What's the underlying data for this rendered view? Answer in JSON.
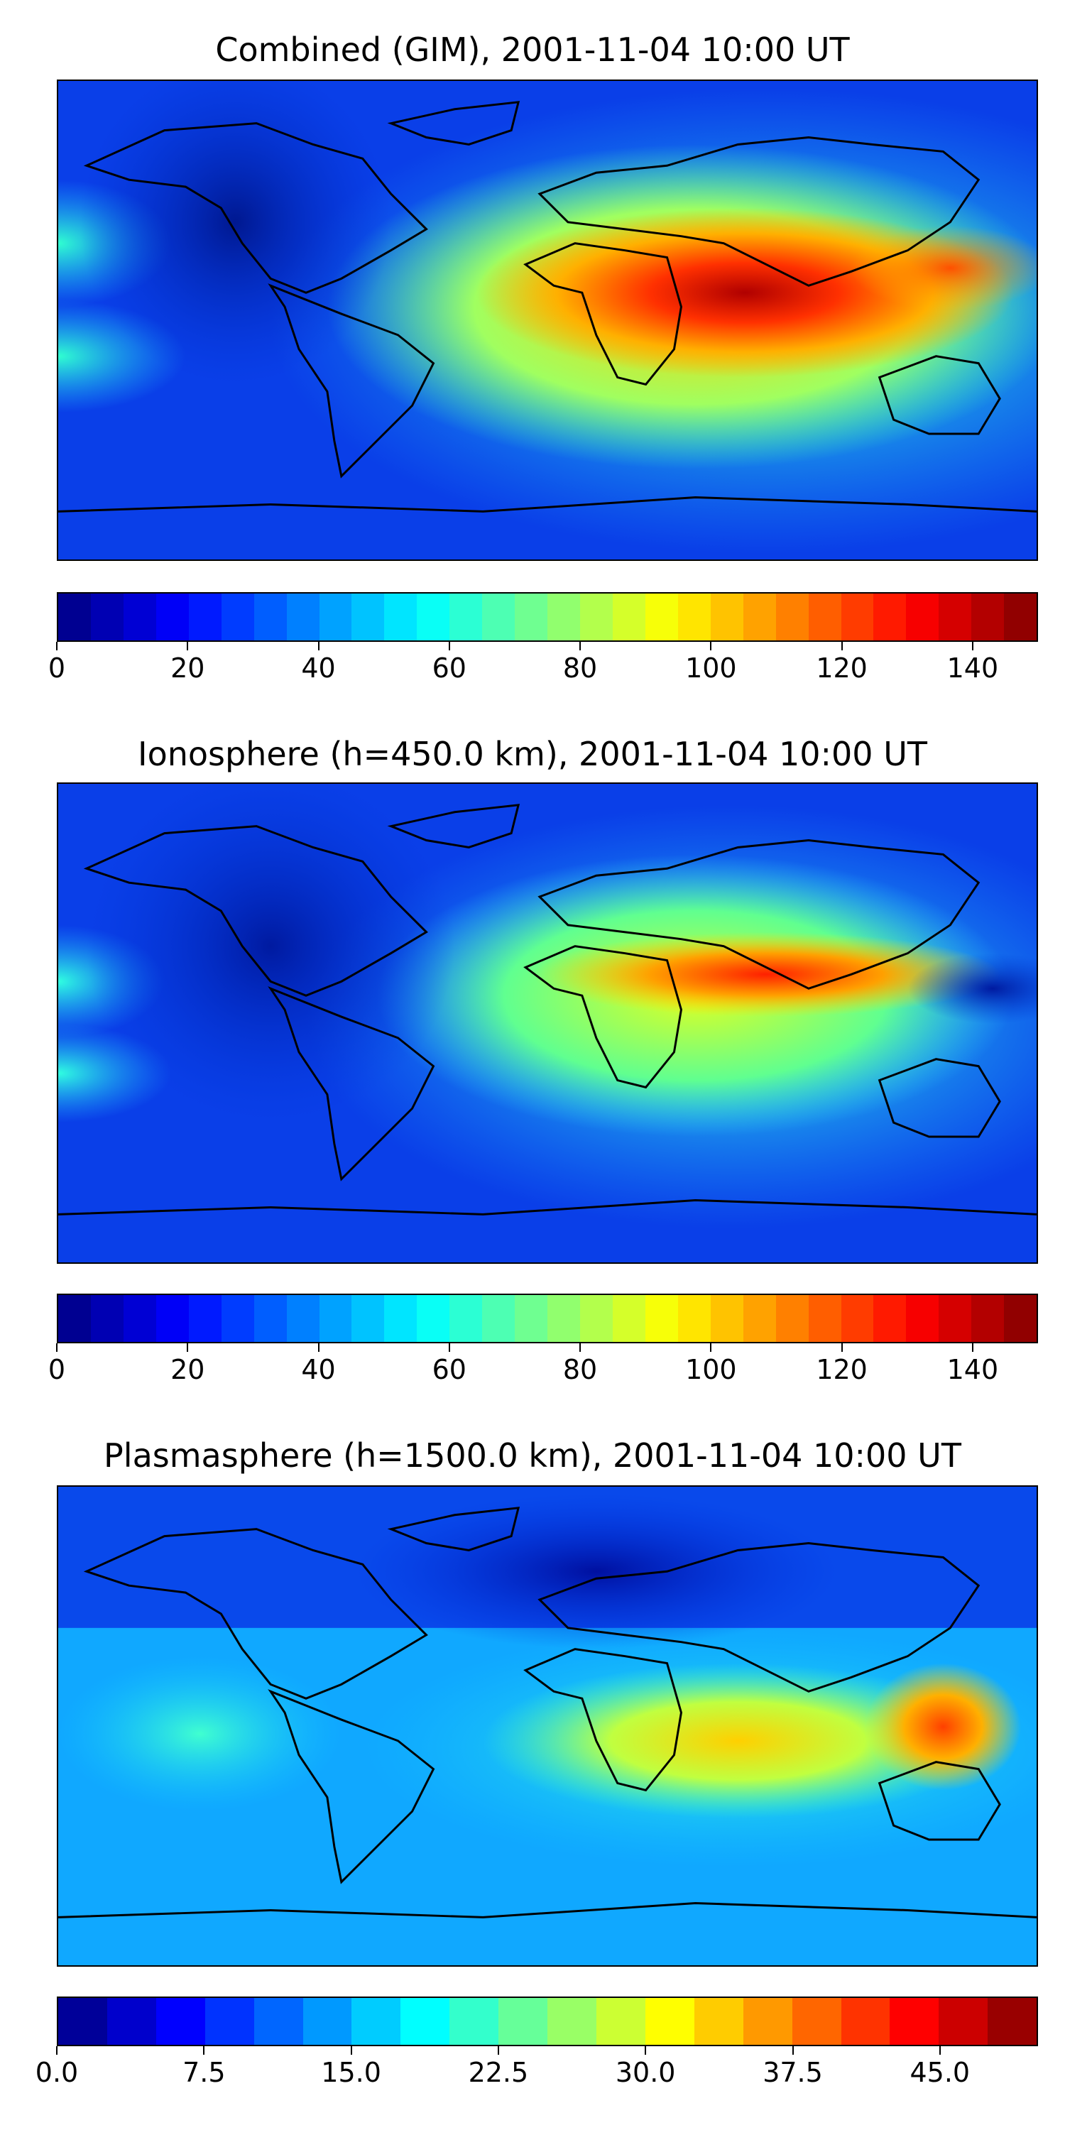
{
  "panels": [
    {
      "title": "Combined (GIM), 2001-11-04 10:00 UT",
      "colorbar": {
        "min": 0,
        "max": 150,
        "levels": 30,
        "ticks": [
          "0",
          "20",
          "40",
          "60",
          "80",
          "100",
          "120",
          "140"
        ]
      }
    },
    {
      "title": "Ionosphere  (h=450.0 km), 2001-11-04 10:00 UT",
      "colorbar": {
        "min": 0,
        "max": 150,
        "levels": 30,
        "ticks": [
          "0",
          "20",
          "40",
          "60",
          "80",
          "100",
          "120",
          "140"
        ]
      }
    },
    {
      "title": "Plasmasphere (h=1500.0 km), 2001-11-04 10:00 UT",
      "colorbar": {
        "min": 0,
        "max": 50,
        "levels": 20,
        "ticks": [
          "0.0",
          "7.5",
          "15.0",
          "22.5",
          "30.0",
          "37.5",
          "45.0"
        ]
      }
    }
  ],
  "colormap": "jet",
  "colors": {
    "coastline": "#000000"
  }
}
